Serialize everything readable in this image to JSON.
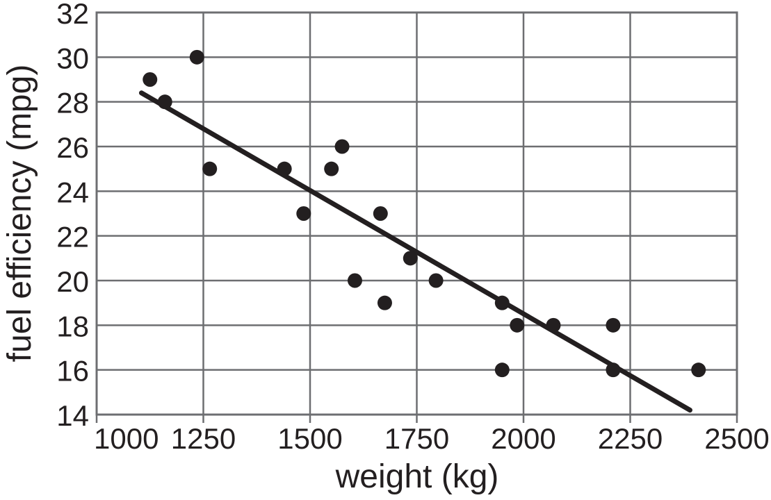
{
  "chart_data": {
    "type": "scatter",
    "title": "",
    "xlabel": "weight (kg)",
    "ylabel": "fuel efficiency (mpg)",
    "xlim": [
      1000,
      2500
    ],
    "ylim": [
      14,
      32
    ],
    "x_ticks": [
      1000,
      1250,
      1500,
      1750,
      2000,
      2250,
      2500
    ],
    "y_ticks": [
      14,
      16,
      18,
      20,
      22,
      24,
      26,
      28,
      30,
      32
    ],
    "grid": true,
    "legend_position": "none",
    "points_xy": [
      [
        1125,
        29
      ],
      [
        1160,
        28
      ],
      [
        1235,
        30
      ],
      [
        1265,
        25
      ],
      [
        1440,
        25
      ],
      [
        1485,
        23
      ],
      [
        1550,
        25
      ],
      [
        1575,
        26
      ],
      [
        1605,
        20
      ],
      [
        1665,
        23
      ],
      [
        1675,
        19
      ],
      [
        1735,
        21
      ],
      [
        1795,
        20
      ],
      [
        1950,
        19
      ],
      [
        1950,
        16
      ],
      [
        1985,
        18
      ],
      [
        2070,
        18
      ],
      [
        2210,
        18
      ],
      [
        2210,
        16
      ],
      [
        2410,
        16
      ]
    ],
    "trend_line": {
      "x1": 1105,
      "y1": 28.4,
      "x2": 2390,
      "y2": 14.2
    },
    "colors": {
      "background": "#ffffff",
      "grid": "#6d6e71",
      "border": "#6d6e71",
      "points": "#231f20",
      "trend_line": "#231f20",
      "text": "#231f20"
    }
  }
}
